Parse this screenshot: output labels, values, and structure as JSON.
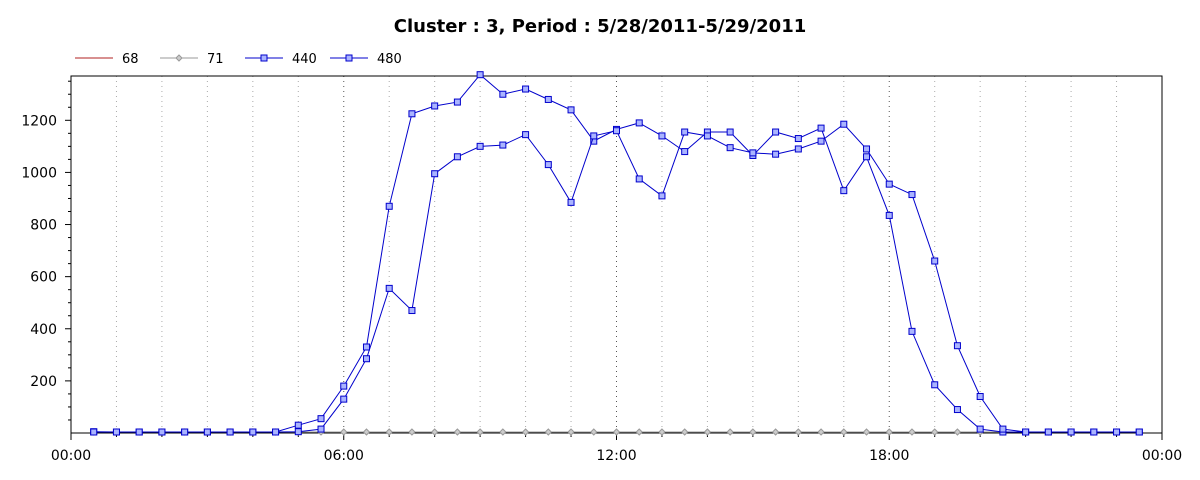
{
  "chart_data": {
    "type": "line",
    "title": "Cluster : 3, Period : 5/28/2011-5/29/2011",
    "xlabel": "",
    "ylabel": "",
    "x_range": [
      "00:00",
      "24:00"
    ],
    "ylim": [
      0,
      1370
    ],
    "x_ticks": [
      {
        "hour": 0,
        "label": "00:00"
      },
      {
        "hour": 6,
        "label": "06:00"
      },
      {
        "hour": 12,
        "label": "12:00"
      },
      {
        "hour": 18,
        "label": "18:00"
      },
      {
        "hour": 24,
        "label": "00:00"
      }
    ],
    "y_ticks": [
      200,
      400,
      600,
      800,
      1000,
      1200
    ],
    "grid": true,
    "legend_position": "top-left",
    "x_hours": [
      0.5,
      1,
      1.5,
      2,
      2.5,
      3,
      3.5,
      4,
      4.5,
      5,
      5.5,
      6,
      6.5,
      7,
      7.5,
      8,
      8.5,
      9,
      9.5,
      10,
      10.5,
      11,
      11.5,
      12,
      12.5,
      13,
      13.5,
      14,
      14.5,
      15,
      15.5,
      16,
      16.5,
      17,
      17.5,
      18,
      18.5,
      19,
      19.5,
      20,
      20.5,
      21,
      21.5,
      22,
      22.5,
      23,
      23.5
    ],
    "series": [
      {
        "name": "68",
        "color": "#b22222",
        "marker": "none",
        "values": [
          0,
          0,
          0,
          0,
          0,
          0,
          0,
          0,
          0,
          0,
          0,
          0,
          0,
          0,
          0,
          0,
          0,
          0,
          0,
          0,
          0,
          0,
          0,
          0,
          0,
          0,
          0,
          0,
          0,
          0,
          0,
          0,
          0,
          0,
          0,
          0,
          0,
          0,
          0,
          0,
          0,
          0,
          0,
          0,
          0,
          0,
          0
        ]
      },
      {
        "name": "71",
        "color": "#999999",
        "marker": "diamond",
        "values": [
          0,
          0,
          0,
          0,
          0,
          0,
          0,
          0,
          0,
          0,
          0,
          0,
          0,
          0,
          0,
          0,
          0,
          0,
          0,
          0,
          0,
          0,
          0,
          0,
          0,
          0,
          0,
          0,
          0,
          0,
          0,
          0,
          0,
          0,
          0,
          0,
          0,
          0,
          0,
          0,
          0,
          0,
          0,
          0,
          0,
          0,
          0
        ]
      },
      {
        "name": "440",
        "color": "#0000cc",
        "marker": "square",
        "values": [
          5,
          3,
          3,
          3,
          3,
          3,
          3,
          3,
          3,
          30,
          55,
          180,
          330,
          870,
          1225,
          1255,
          1270,
          1375,
          1300,
          1320,
          1280,
          1240,
          1120,
          1165,
          1190,
          1140,
          1080,
          1155,
          1155,
          1065,
          1155,
          1130,
          1170,
          930,
          1060,
          835,
          390,
          185,
          90,
          15,
          3,
          3,
          3,
          3,
          3,
          3,
          3
        ]
      },
      {
        "name": "480",
        "color": "#0000cc",
        "marker": "square",
        "values": [
          3,
          3,
          3,
          3,
          3,
          3,
          3,
          3,
          3,
          5,
          15,
          130,
          285,
          555,
          470,
          995,
          1060,
          1100,
          1105,
          1145,
          1030,
          885,
          1140,
          1160,
          975,
          910,
          1155,
          1140,
          1095,
          1075,
          1070,
          1090,
          1120,
          1185,
          1090,
          955,
          915,
          660,
          335,
          140,
          15,
          3,
          3,
          3,
          3,
          3,
          3
        ]
      }
    ]
  }
}
